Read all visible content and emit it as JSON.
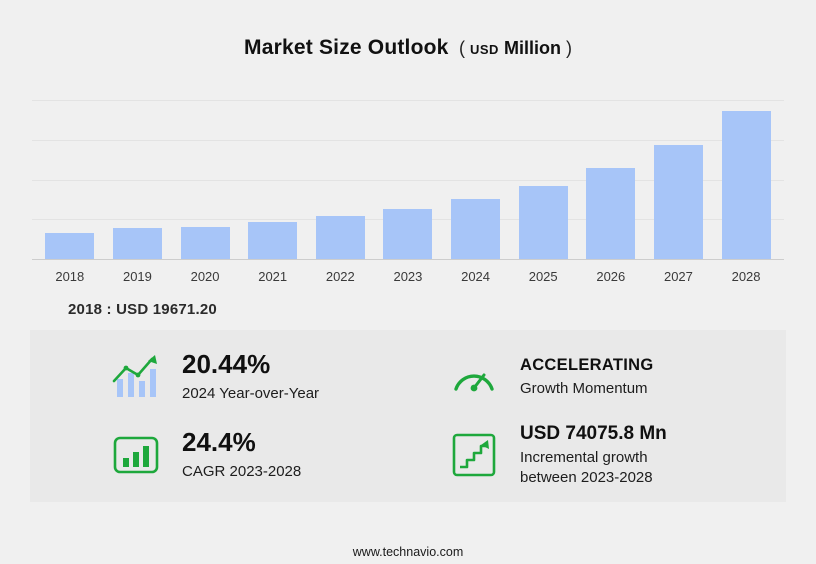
{
  "title": {
    "main": "Market Size Outlook",
    "unit_open": "(",
    "unit_currency": "USD",
    "unit_word": "Million",
    "unit_close": ")"
  },
  "chart_data": {
    "type": "bar",
    "title": "Market Size Outlook (USD Million)",
    "categories": [
      "2018",
      "2019",
      "2020",
      "2021",
      "2022",
      "2023",
      "2024",
      "2025",
      "2026",
      "2027",
      "2028"
    ],
    "values": [
      19671.2,
      23600,
      24450,
      28270,
      32100,
      37450,
      45106,
      55000,
      68800,
      86300,
      111526
    ],
    "xlabel": "",
    "ylabel": "USD Million",
    "ylim": [
      0,
      120000
    ],
    "grid": true,
    "legend": "none",
    "bar_color": "#a7c5f8"
  },
  "base_year_line": "2018 : USD  19671.20",
  "stats": [
    {
      "icon": "trend-line-bars-icon",
      "value": "20.44%",
      "label": "2024 Year-over-Year"
    },
    {
      "icon": "speedometer-icon",
      "value": "ACCELERATING",
      "label": "Growth Momentum"
    },
    {
      "icon": "bar-chart-icon",
      "value": "24.4%",
      "label": "CAGR 2023-2028"
    },
    {
      "icon": "incremental-growth-icon",
      "value": "USD 74075.8 Mn",
      "label": "Incremental growth\nbetween 2023-2028"
    }
  ],
  "footer": {
    "url": "www.technavio.com"
  },
  "colors": {
    "page_bg": "#f0f0f0",
    "panel_bg": "#e9e9e9",
    "bar": "#a7c5f8",
    "accent_green": "#1ea83c",
    "icon_bar_blue": "#a7c5f8"
  }
}
